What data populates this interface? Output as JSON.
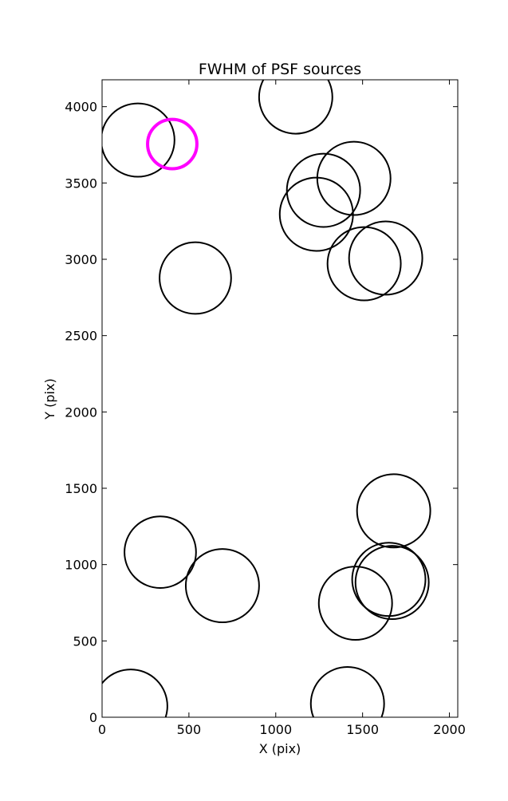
{
  "chart_data": {
    "type": "scatter",
    "title": "FWHM of PSF sources",
    "x_label": "X (pix)",
    "y_label": "Y (pix)",
    "xlim": [
      0,
      2048
    ],
    "ylim": [
      0,
      4176
    ],
    "xticks": [
      0,
      500,
      1000,
      1500,
      2000
    ],
    "yticks": [
      0,
      500,
      1000,
      1500,
      2000,
      2500,
      3000,
      3500,
      4000
    ],
    "series": [
      {
        "color": "#000000",
        "x": [
          206,
          1115,
          1450,
          1275,
          1234,
          1633,
          1509,
          537,
          1679,
          335,
          693,
          1651,
          1670,
          1459,
          165,
          1413
        ],
        "values": [
          3781,
          4063,
          3530,
          3452,
          3295,
          3008,
          2971,
          2877,
          1352,
          1081,
          862,
          903,
          883,
          747,
          73,
          89
        ],
        "sizes": [
          211,
          211,
          211,
          211,
          211,
          211,
          211,
          206,
          211,
          206,
          211,
          211,
          211,
          211,
          211,
          211
        ]
      },
      {
        "color": "#ff00ff",
        "x": [
          404
        ],
        "values": [
          3755
        ],
        "sizes": [
          142
        ]
      }
    ]
  }
}
